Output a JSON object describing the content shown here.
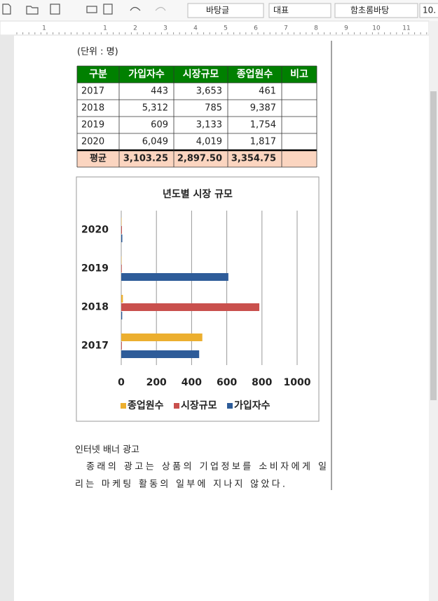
{
  "toolbar": {
    "style": "바탕글",
    "style_group": "대표",
    "font": "함초롬바탕",
    "size": "10."
  },
  "ruler": [
    1,
    1,
    2,
    3,
    4,
    5,
    6,
    7,
    8,
    9,
    10,
    11
  ],
  "document": {
    "unit_note": "(단위 : 명)",
    "table": {
      "header": [
        "구분",
        "가입자수",
        "시장규모",
        "종업원수",
        "비고"
      ],
      "rows": [
        [
          "2017",
          "443",
          "3,653",
          "461"
        ],
        [
          "2018",
          "5,312",
          "785",
          "9,387"
        ],
        [
          "2019",
          "609",
          "3,133",
          "1,754"
        ],
        [
          "2020",
          "6,049",
          "4,019",
          "1,817"
        ]
      ],
      "average": [
        "평균",
        "3,103.25",
        "2,897.50",
        "3,354.75"
      ]
    },
    "heading": "인터넷 배너 광고",
    "paragraph": [
      "종래의 광고는 상품의 기업정보를 소비자에게 일",
      "리는 마케팅 활동의 일부에 지나지 않았다."
    ]
  },
  "chart_data": {
    "type": "bar",
    "orientation": "horizontal",
    "title": "년도별 시장 규모",
    "categories": [
      "2017",
      "2018",
      "2019",
      "2020"
    ],
    "series": [
      {
        "name": "가입자수",
        "color": "#2e5c99",
        "values": [
          443,
          5.312,
          609,
          6.049
        ]
      },
      {
        "name": "시장규모",
        "color": "#c9504d",
        "values": [
          3.653,
          785,
          3.133,
          4.019
        ]
      },
      {
        "name": "종업원수",
        "color": "#ecaf2f",
        "values": [
          461,
          9.387,
          1.754,
          1.817
        ]
      }
    ],
    "xlim": [
      0,
      1000
    ],
    "xticks": [
      0,
      200,
      400,
      600,
      800,
      1000
    ],
    "grid": true,
    "legend": "bottom"
  }
}
